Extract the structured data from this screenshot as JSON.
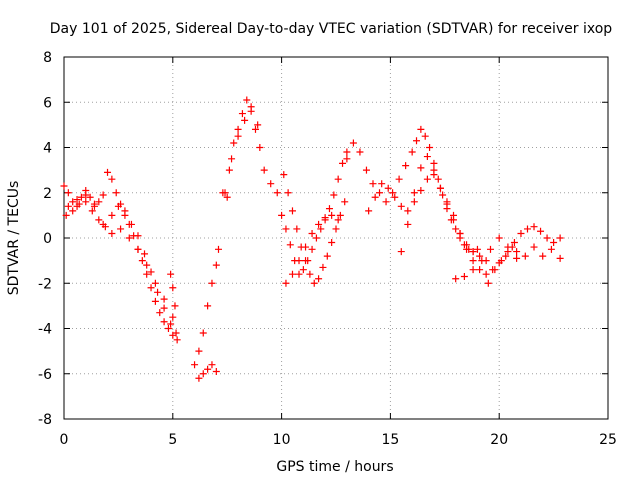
{
  "chart_data": {
    "type": "scatter",
    "title": "Day 101 of 2025, Sidereal Day-to-day VTEC variation (SDTVAR) for receiver ixop",
    "xlabel": "GPS time / hours",
    "ylabel": "SDTVAR / TECUs",
    "xlim": [
      0,
      25
    ],
    "ylim": [
      -8,
      8
    ],
    "x_ticks": [
      0,
      5,
      10,
      15,
      20,
      25
    ],
    "y_ticks": [
      -8,
      -6,
      -4,
      -2,
      0,
      2,
      4,
      6,
      8
    ],
    "x_tick_labels": [
      "0",
      "5",
      "10",
      "15",
      "20",
      "25"
    ],
    "y_tick_labels": [
      "-8",
      "-6",
      "-4",
      "-2",
      "0",
      "2",
      "4",
      "6",
      "8"
    ],
    "grid": true,
    "marker": "+",
    "series": [
      {
        "name": "SDTVAR",
        "color": "#ff0000",
        "x": [
          0.0,
          0.2,
          0.4,
          0.6,
          0.8,
          1.0,
          1.2,
          1.4,
          1.6,
          1.8,
          2.0,
          2.2,
          2.4,
          2.6,
          2.8,
          3.0,
          3.2,
          3.4,
          3.6,
          3.8,
          4.0,
          4.2,
          4.4,
          4.6,
          4.8,
          5.0,
          5.2,
          0.1,
          0.4,
          0.7,
          1.0,
          1.3,
          1.6,
          1.9,
          2.2,
          2.5,
          2.8,
          3.1,
          3.4,
          3.7,
          4.0,
          4.3,
          4.6,
          4.9,
          0.2,
          0.6,
          1.0,
          1.4,
          1.8,
          2.2,
          2.6,
          3.0,
          3.4,
          3.8,
          4.2,
          4.6,
          5.0,
          4.9,
          5.0,
          5.1,
          5.15,
          6.0,
          6.2,
          6.4,
          6.6,
          6.8,
          7.0,
          7.1,
          7.3,
          6.2,
          6.4,
          6.6,
          6.8,
          7.0,
          7.4,
          7.6,
          7.8,
          8.0,
          8.2,
          8.4,
          8.6,
          8.8,
          9.0,
          9.2,
          9.5,
          9.8,
          7.5,
          7.7,
          8.0,
          8.3,
          8.6,
          8.9,
          10.0,
          10.2,
          10.4,
          10.6,
          10.8,
          11.0,
          11.2,
          11.4,
          11.6,
          11.8,
          12.0,
          12.2,
          12.4,
          12.6,
          12.8,
          13.0,
          10.1,
          10.3,
          10.5,
          10.7,
          10.9,
          11.1,
          11.3,
          11.5,
          11.7,
          11.9,
          12.1,
          12.3,
          12.5,
          12.7,
          12.9,
          10.2,
          10.5,
          10.8,
          11.1,
          11.4,
          11.7,
          12.0,
          12.3,
          12.6,
          13.0,
          13.3,
          13.6,
          13.9,
          14.2,
          14.5,
          14.8,
          15.1,
          15.4,
          15.7,
          16.0,
          16.2,
          16.4,
          16.6,
          16.8,
          17.0,
          17.2,
          17.4,
          17.6,
          17.8,
          18.0,
          18.2,
          18.4,
          18.6,
          18.8,
          19.0,
          14.0,
          14.3,
          14.6,
          14.9,
          15.2,
          15.5,
          15.8,
          16.1,
          16.4,
          16.7,
          17.0,
          17.3,
          17.6,
          17.9,
          18.2,
          18.5,
          18.8,
          19.1,
          19.4,
          15.5,
          15.8,
          16.1,
          16.4,
          16.7,
          17.0,
          17.3,
          17.6,
          17.9,
          18.2,
          18.5,
          18.8,
          19.1,
          19.4,
          19.7,
          20.0,
          20.3,
          20.6,
          18.0,
          18.4,
          18.8,
          19.2,
          19.6,
          20.0,
          20.4,
          20.8,
          19.5,
          19.8,
          20.1,
          20.4,
          20.7,
          21.0,
          21.3,
          21.6,
          21.9,
          22.2,
          22.5,
          22.8,
          20.8,
          21.2,
          21.6,
          22.0,
          22.4,
          22.8
        ],
        "y": [
          2.3,
          2.0,
          1.6,
          1.4,
          1.8,
          2.1,
          1.8,
          1.5,
          1.6,
          1.9,
          2.9,
          2.6,
          2.0,
          1.5,
          1.0,
          0.6,
          0.1,
          -0.5,
          -1.0,
          -1.6,
          -2.2,
          -2.8,
          -3.3,
          -3.7,
          -4.0,
          -4.3,
          -4.5,
          1.0,
          1.2,
          1.5,
          1.6,
          1.2,
          0.8,
          0.5,
          1.0,
          1.4,
          1.2,
          0.6,
          0.1,
          -0.7,
          -1.5,
          -2.4,
          -3.1,
          -3.8,
          1.4,
          1.7,
          1.9,
          1.4,
          0.6,
          0.2,
          0.4,
          0.0,
          -0.5,
          -1.2,
          -2.0,
          -2.7,
          -3.5,
          -1.6,
          -2.2,
          -3.0,
          -4.2,
          -5.6,
          -5.0,
          -4.2,
          -3.0,
          -2.0,
          -1.2,
          -0.5,
          2.0,
          -6.2,
          -6.0,
          -5.8,
          -5.6,
          -5.9,
          2.0,
          3.0,
          4.2,
          4.8,
          5.5,
          6.1,
          5.6,
          4.8,
          4.0,
          3.0,
          2.4,
          2.0,
          1.8,
          3.5,
          4.5,
          5.2,
          5.8,
          5.0,
          1.0,
          0.4,
          -0.3,
          -1.0,
          -1.6,
          -1.4,
          -1.0,
          -0.5,
          0.0,
          0.4,
          0.8,
          1.3,
          1.9,
          2.6,
          3.3,
          3.8,
          2.8,
          2.0,
          1.2,
          0.4,
          -0.4,
          -1.0,
          -1.6,
          -2.0,
          -1.8,
          -1.3,
          -0.8,
          -0.2,
          0.4,
          1.0,
          1.6,
          -2.0,
          -1.6,
          -1.0,
          -0.4,
          0.2,
          0.6,
          0.9,
          1.0,
          0.8,
          3.5,
          4.2,
          3.8,
          3.0,
          2.4,
          2.0,
          1.6,
          2.0,
          2.6,
          3.2,
          3.8,
          4.3,
          4.8,
          4.5,
          4.0,
          3.3,
          2.6,
          1.9,
          1.3,
          0.8,
          0.4,
          0.0,
          -0.3,
          -0.5,
          -0.6,
          -0.5,
          1.2,
          1.8,
          2.4,
          2.2,
          1.8,
          1.4,
          1.2,
          1.6,
          2.1,
          2.6,
          2.8,
          2.2,
          1.5,
          0.8,
          0.2,
          -0.3,
          -0.6,
          -0.8,
          -1.0,
          -0.6,
          0.6,
          2.0,
          3.1,
          3.6,
          3.0,
          2.2,
          1.6,
          1.0,
          0.2,
          -0.5,
          -1.0,
          -1.4,
          -1.6,
          -1.4,
          -1.1,
          -0.8,
          -0.4,
          -1.8,
          -1.7,
          -1.4,
          -1.0,
          -0.5,
          0.0,
          -0.4,
          -0.9,
          -2.0,
          -1.4,
          -1.0,
          -0.6,
          -0.2,
          0.2,
          0.4,
          0.5,
          0.3,
          0.0,
          -0.2,
          0.0,
          -0.6,
          -0.8,
          -0.4,
          -0.8,
          -0.5,
          -0.9
        ]
      }
    ]
  }
}
